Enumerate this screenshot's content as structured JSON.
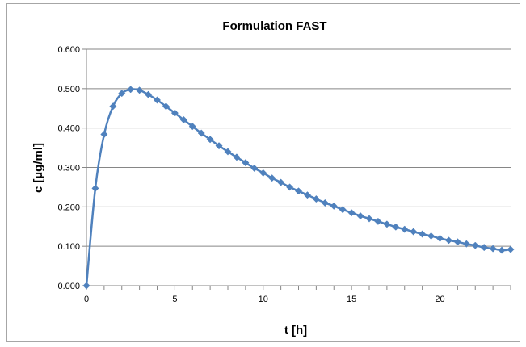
{
  "chart_data": {
    "type": "scatter",
    "title": "Formulation FAST",
    "xlabel": "t [h]",
    "ylabel": "c [µg/ml]",
    "xlim": [
      0,
      24
    ],
    "ylim": [
      0,
      0.6
    ],
    "xticks": [
      "0",
      "5",
      "10",
      "15",
      "20"
    ],
    "yticks": [
      "0.000",
      "0.100",
      "0.200",
      "0.300",
      "0.400",
      "0.500",
      "0.600"
    ],
    "grid": "horizontal",
    "legend": "none",
    "colors": {
      "series": "#4f81bd",
      "grid": "#868686",
      "axis": "#868686"
    },
    "series": [
      {
        "marker": "diamond",
        "line": "smooth",
        "x": [
          0,
          0.5,
          1,
          1.5,
          2,
          2.5,
          3,
          3.5,
          4,
          4.5,
          5,
          5.5,
          6,
          6.5,
          7,
          7.5,
          8,
          8.5,
          9,
          9.5,
          10,
          10.5,
          11,
          11.5,
          12,
          12.5,
          13,
          13.5,
          14,
          14.5,
          15,
          15.5,
          16,
          16.5,
          17,
          17.5,
          18,
          18.5,
          19,
          19.5,
          20,
          20.5,
          21,
          21.5,
          22,
          22.5,
          23,
          23.5,
          24
        ],
        "y": [
          0.0,
          0.247,
          0.384,
          0.455,
          0.488,
          0.498,
          0.496,
          0.485,
          0.471,
          0.455,
          0.438,
          0.421,
          0.404,
          0.387,
          0.371,
          0.355,
          0.34,
          0.326,
          0.312,
          0.298,
          0.286,
          0.273,
          0.262,
          0.25,
          0.24,
          0.23,
          0.22,
          0.21,
          0.202,
          0.193,
          0.185,
          0.177,
          0.17,
          0.163,
          0.156,
          0.149,
          0.143,
          0.137,
          0.131,
          0.126,
          0.12,
          0.115,
          0.111,
          0.106,
          0.102,
          0.097,
          0.094,
          0.09,
          0.092
        ]
      }
    ]
  }
}
